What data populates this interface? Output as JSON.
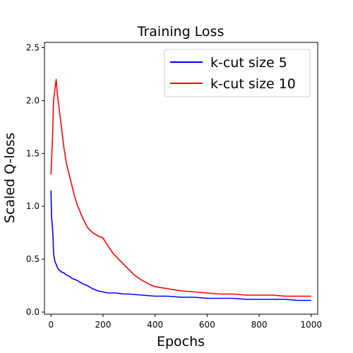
{
  "chart_data": {
    "type": "line",
    "title": "Training Loss",
    "xlabel": "Epochs",
    "ylabel": "Scaled Q-loss",
    "xlim": [
      -25,
      1025
    ],
    "ylim": [
      -0.02,
      2.55
    ],
    "xticks": [
      0,
      200,
      400,
      600,
      800,
      1000
    ],
    "yticks": [
      0.0,
      0.5,
      1.0,
      1.5,
      2.0,
      2.5
    ],
    "xtick_labels": [
      "0",
      "200",
      "400",
      "600",
      "800",
      "1000"
    ],
    "ytick_labels": [
      "0.0",
      "0.5",
      "1.0",
      "1.5",
      "2.0",
      "2.5"
    ],
    "grid": false,
    "legend_position": "top-right",
    "series": [
      {
        "name": "k-cut size 5",
        "color": "#0000ff",
        "x": [
          0,
          2,
          5,
          8,
          10,
          15,
          20,
          25,
          30,
          40,
          50,
          60,
          70,
          80,
          90,
          100,
          120,
          140,
          160,
          180,
          200,
          220,
          250,
          280,
          300,
          350,
          400,
          450,
          500,
          550,
          600,
          650,
          700,
          750,
          800,
          850,
          900,
          950,
          1000
        ],
        "values": [
          1.15,
          0.9,
          0.82,
          0.7,
          0.55,
          0.48,
          0.45,
          0.42,
          0.4,
          0.38,
          0.37,
          0.35,
          0.34,
          0.32,
          0.31,
          0.3,
          0.27,
          0.25,
          0.22,
          0.2,
          0.19,
          0.18,
          0.18,
          0.17,
          0.17,
          0.16,
          0.15,
          0.15,
          0.14,
          0.14,
          0.13,
          0.13,
          0.13,
          0.12,
          0.12,
          0.12,
          0.12,
          0.11,
          0.11
        ]
      },
      {
        "name": "k-cut size 10",
        "color": "#ff0000",
        "x": [
          0,
          5,
          10,
          15,
          20,
          25,
          30,
          40,
          50,
          60,
          70,
          80,
          90,
          100,
          120,
          140,
          160,
          180,
          200,
          220,
          240,
          260,
          280,
          300,
          320,
          350,
          380,
          400,
          450,
          500,
          550,
          600,
          650,
          700,
          750,
          800,
          850,
          900,
          950,
          1000
        ],
        "values": [
          1.3,
          1.6,
          2.0,
          2.1,
          2.2,
          2.05,
          1.95,
          1.75,
          1.55,
          1.4,
          1.3,
          1.2,
          1.1,
          1.02,
          0.9,
          0.8,
          0.75,
          0.72,
          0.7,
          0.62,
          0.55,
          0.5,
          0.45,
          0.4,
          0.35,
          0.3,
          0.26,
          0.24,
          0.22,
          0.2,
          0.19,
          0.18,
          0.17,
          0.17,
          0.16,
          0.16,
          0.16,
          0.15,
          0.15,
          0.15
        ]
      }
    ]
  }
}
